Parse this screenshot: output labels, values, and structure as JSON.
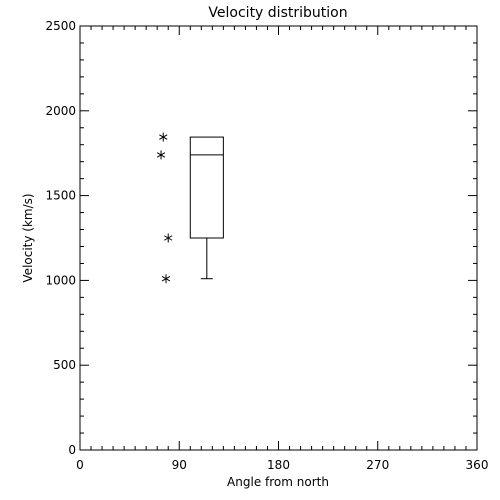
{
  "chart_data": {
    "type": "box",
    "title": "Velocity distribution",
    "x_label": "Angle from north",
    "y_label": "Velocity (km/s)",
    "xlim": [
      0,
      360
    ],
    "xticks": [
      0,
      90,
      180,
      270,
      360
    ],
    "ylim": [
      0,
      2500
    ],
    "yticks": [
      0,
      500,
      1000,
      1500,
      2000,
      2500
    ],
    "box": {
      "x": 115,
      "width": 30,
      "whisker_low": 1010,
      "q1": 1250,
      "median": 1740,
      "q3": 1845,
      "whisker_high": 1845
    },
    "points": {
      "x": [
        75.5,
        73.5,
        80,
        78
      ],
      "y": [
        1845,
        1740,
        1250,
        1010
      ]
    },
    "color": "#000000"
  }
}
